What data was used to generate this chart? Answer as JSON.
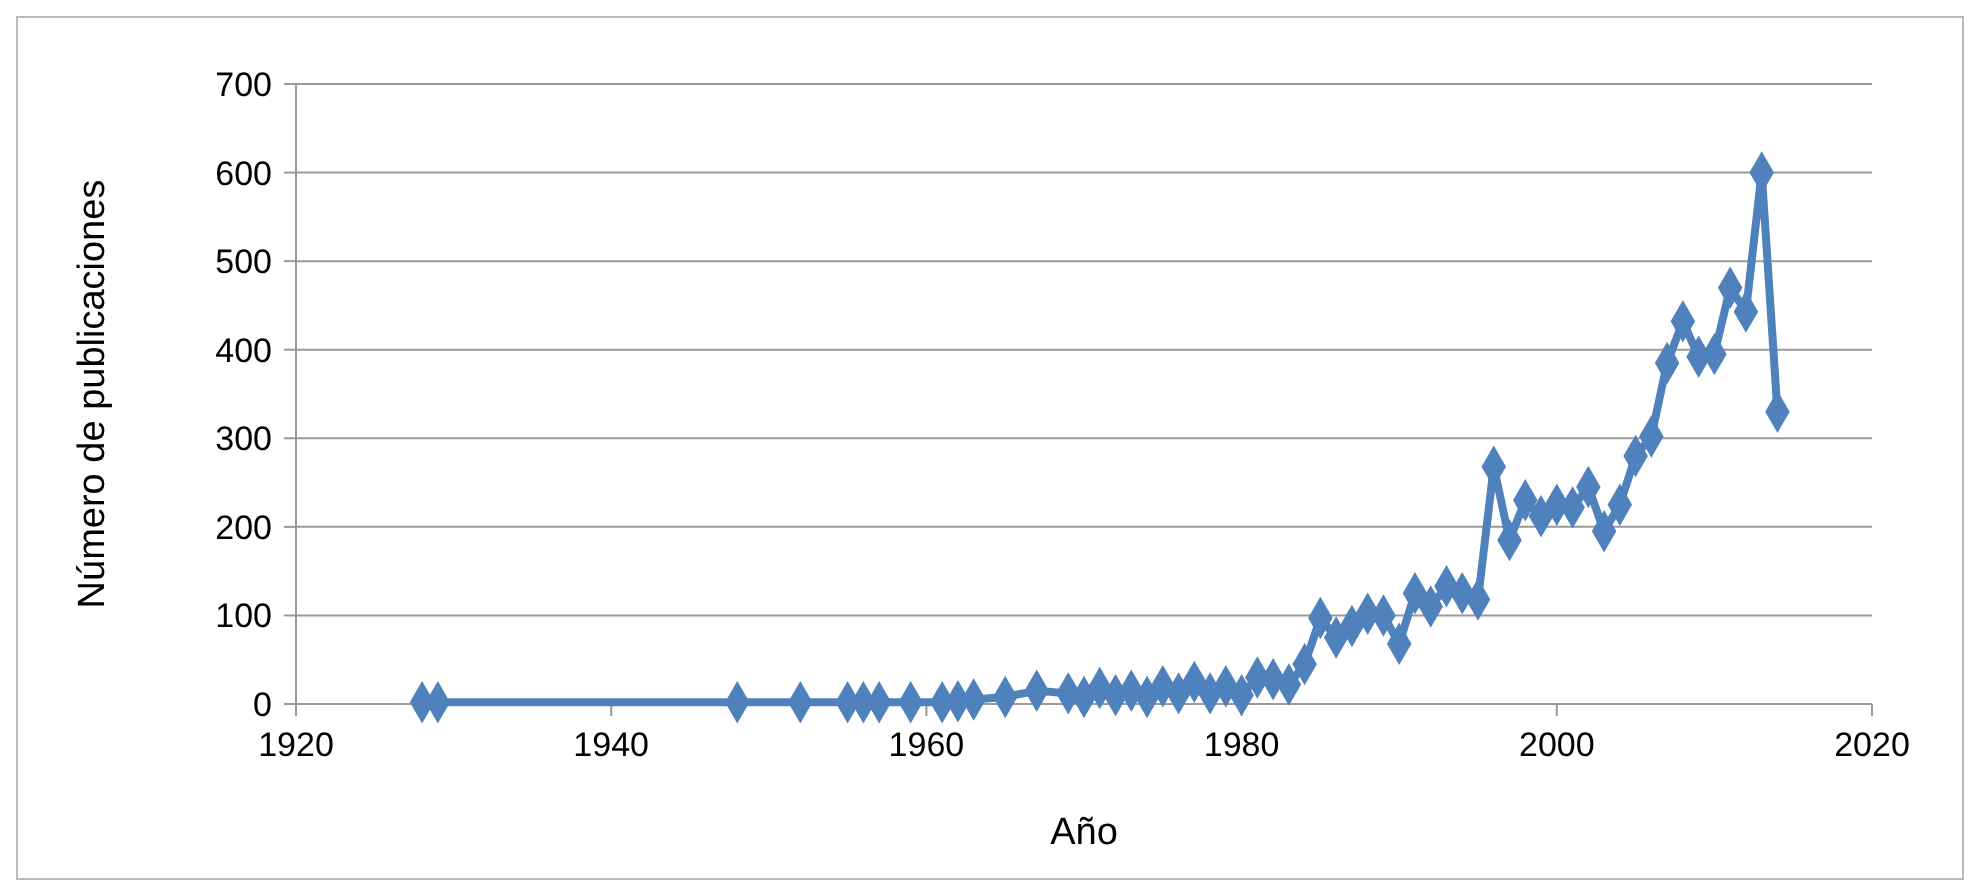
{
  "chart_data": {
    "type": "line",
    "xlabel": "Año",
    "ylabel": "Número de publicaciones",
    "xlim": [
      1920,
      2020
    ],
    "xticks": [
      1920,
      1940,
      1960,
      1980,
      2000,
      2020
    ],
    "ylim": [
      0,
      700
    ],
    "yticks": [
      0,
      100,
      200,
      300,
      400,
      500,
      600,
      700
    ],
    "grid": "y",
    "marker": "diamond",
    "line_style": "solid",
    "series": [
      {
        "color": "#4f81bd",
        "x": [
          1928,
          1929,
          1948,
          1952,
          1955,
          1956,
          1957,
          1959,
          1961,
          1962,
          1963,
          1965,
          1967,
          1969,
          1970,
          1971,
          1972,
          1973,
          1974,
          1975,
          1976,
          1977,
          1978,
          1979,
          1980,
          1981,
          1982,
          1983,
          1984,
          1985,
          1986,
          1987,
          1988,
          1989,
          1990,
          1991,
          1992,
          1993,
          1994,
          1995,
          1996,
          1997,
          1998,
          1999,
          2000,
          2001,
          2002,
          2003,
          2004,
          2005,
          2006,
          2007,
          2008,
          2009,
          2010,
          2011,
          2012,
          2013,
          2014
        ],
        "values": [
          2,
          2,
          2,
          2,
          2,
          2,
          2,
          2,
          2,
          3,
          5,
          8,
          15,
          12,
          8,
          18,
          10,
          15,
          8,
          20,
          12,
          25,
          12,
          20,
          10,
          30,
          28,
          22,
          45,
          97,
          75,
          88,
          102,
          100,
          68,
          125,
          110,
          133,
          125,
          118,
          268,
          185,
          230,
          212,
          225,
          222,
          245,
          195,
          225,
          280,
          302,
          385,
          432,
          392,
          395,
          470,
          443,
          600,
          330
        ]
      }
    ]
  }
}
